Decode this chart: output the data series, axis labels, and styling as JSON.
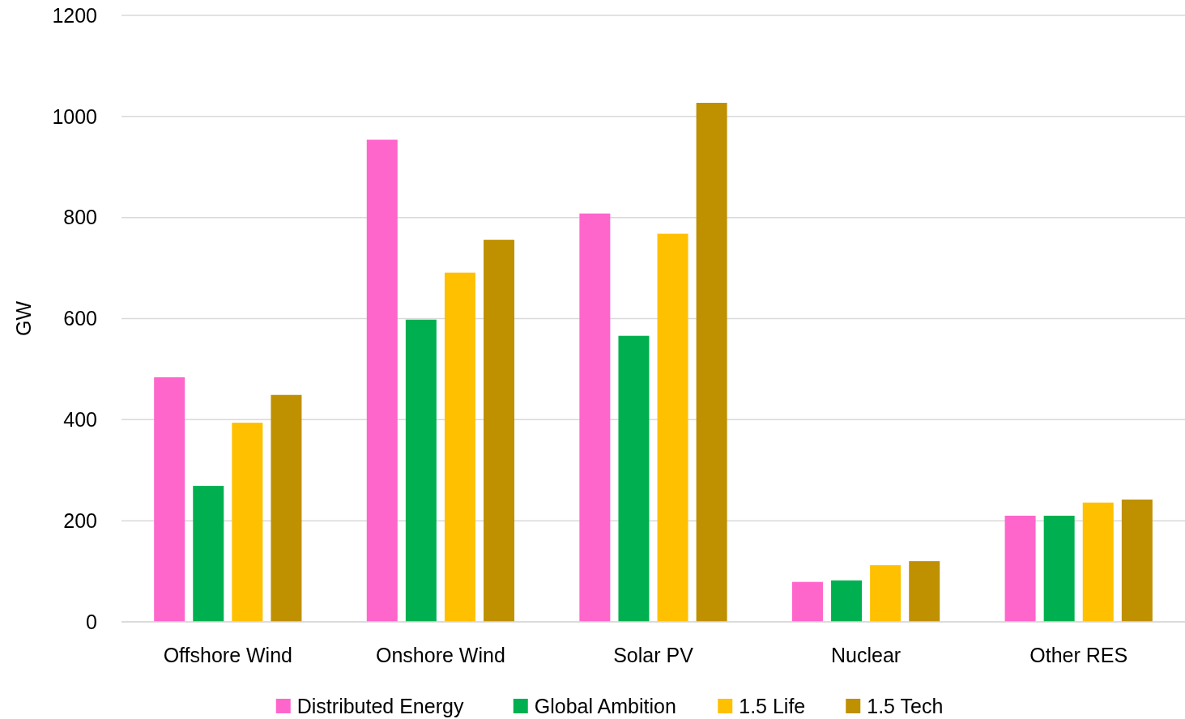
{
  "chart_data": {
    "type": "bar",
    "ylabel": "GW",
    "categories": [
      "Offshore Wind",
      "Onshore Wind",
      "Solar PV",
      "Nuclear",
      "Other RES"
    ],
    "series": [
      {
        "name": "Distributed Energy",
        "color": "#ff66cc",
        "values": [
          484,
          954,
          808,
          79,
          210
        ]
      },
      {
        "name": "Global Ambition",
        "color": "#00b050",
        "values": [
          269,
          598,
          566,
          82,
          210
        ]
      },
      {
        "name": "1.5 Life",
        "color": "#ffc000",
        "values": [
          394,
          691,
          768,
          112,
          236
        ]
      },
      {
        "name": "1.5 Tech",
        "color": "#bf9000",
        "values": [
          449,
          756,
          1027,
          120,
          242
        ]
      }
    ],
    "ylim": [
      0,
      1200
    ],
    "yticks": [
      0,
      200,
      400,
      600,
      800,
      1000,
      1200
    ],
    "grid": "y",
    "legend": "bottom"
  }
}
